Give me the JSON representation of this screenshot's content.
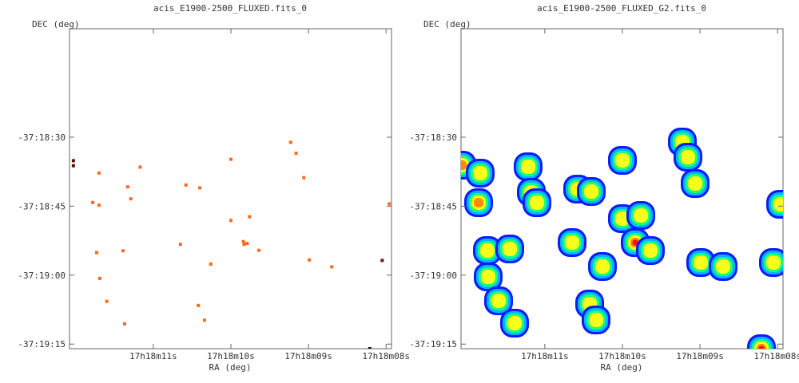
{
  "chart_data": [
    {
      "type": "scatter",
      "title": "acis_E1900-2500_FLUXED.fits_0",
      "xlabel": "RA (deg)",
      "ylabel": "DEC (deg)",
      "x_ticks": [
        "17h18m11s",
        "17h18m10s",
        "17h18m09s",
        "17h18m08s"
      ],
      "y_ticks": [
        "-37:18:30",
        "-37:18:45",
        "-37:19:00",
        "-37:19:15"
      ],
      "x_range_sec": [
        12.08,
        7.93
      ],
      "y_range_arcsec": [
        -1086.4,
        -1156.0
      ],
      "grid": false,
      "points": [
        {
          "ra": 12.03,
          "dec": -1115.1,
          "color": "#5c0e00"
        },
        {
          "ra": 12.03,
          "dec": -1116.2,
          "color": "#5c0e00"
        },
        {
          "ra": 11.7,
          "dec": -1117.8,
          "color": "#ff6a1a"
        },
        {
          "ra": 11.7,
          "dec": -1124.8,
          "color": "#ff6a1a"
        },
        {
          "ra": 11.78,
          "dec": -1124.2,
          "color": "#ff6a1a"
        },
        {
          "ra": 11.33,
          "dec": -1120.8,
          "color": "#ff6a1a"
        },
        {
          "ra": 11.17,
          "dec": -1116.5,
          "color": "#ff6a1a"
        },
        {
          "ra": 11.29,
          "dec": -1123.4,
          "color": "#ff6a1a"
        },
        {
          "ra": 10.58,
          "dec": -1120.4,
          "color": "#ff6a1a"
        },
        {
          "ra": 10.4,
          "dec": -1121.0,
          "color": "#ff6a1a"
        },
        {
          "ra": 10.0,
          "dec": -1114.8,
          "color": "#ff6a1a"
        },
        {
          "ra": 9.23,
          "dec": -1111.1,
          "color": "#ff6a1a"
        },
        {
          "ra": 9.16,
          "dec": -1113.5,
          "color": "#ff6a1a"
        },
        {
          "ra": 9.06,
          "dec": -1118.8,
          "color": "#ff6a1a"
        },
        {
          "ra": 10.0,
          "dec": -1128.1,
          "color": "#ff6a1a"
        },
        {
          "ra": 9.76,
          "dec": -1127.3,
          "color": "#ff6a1a"
        },
        {
          "ra": 9.84,
          "dec": -1132.7,
          "color": "#ff6a1a"
        },
        {
          "ra": 9.83,
          "dec": -1133.3,
          "color": "#ff6a1a"
        },
        {
          "ra": 9.79,
          "dec": -1133.1,
          "color": "#ff6a1a"
        },
        {
          "ra": 9.64,
          "dec": -1134.6,
          "color": "#ff6a1a"
        },
        {
          "ra": 10.65,
          "dec": -1133.3,
          "color": "#ff6a1a"
        },
        {
          "ra": 11.39,
          "dec": -1134.7,
          "color": "#ff6a1a"
        },
        {
          "ra": 11.73,
          "dec": -1135.1,
          "color": "#ff6a1a"
        },
        {
          "ra": 10.26,
          "dec": -1137.6,
          "color": "#ff6a1a"
        },
        {
          "ra": 8.99,
          "dec": -1136.7,
          "color": "#ff6a1a"
        },
        {
          "ra": 8.7,
          "dec": -1138.2,
          "color": "#ff6a1a"
        },
        {
          "ra": 11.69,
          "dec": -1140.7,
          "color": "#ff6a1a"
        },
        {
          "ra": 11.6,
          "dec": -1145.7,
          "color": "#ff6a1a"
        },
        {
          "ra": 10.42,
          "dec": -1146.6,
          "color": "#ff6a1a"
        },
        {
          "ra": 11.37,
          "dec": -1150.6,
          "color": "#ff6a1a"
        },
        {
          "ra": 10.34,
          "dec": -1149.8,
          "color": "#ff6a1a"
        },
        {
          "ra": 8.05,
          "dec": -1136.8,
          "color": "#7a1206"
        },
        {
          "ra": 7.96,
          "dec": -1124.5,
          "color": "#ff6a1a"
        },
        {
          "ra": 8.21,
          "dec": -1156.0,
          "color": "#111111"
        }
      ]
    },
    {
      "type": "heatmap",
      "title": "acis_E1900-2500_FLUXED_G2.fits_0",
      "xlabel": "RA (deg)",
      "ylabel": "DEC (deg)",
      "x_ticks": [
        "17h18m11s",
        "17h18m10s",
        "17h18m09s",
        "17h18m08s"
      ],
      "y_ticks": [
        "-37:18:30",
        "-37:18:45",
        "-37:19:00",
        "-37:19:15"
      ],
      "x_range_sec": [
        12.08,
        7.93
      ],
      "y_range_arcsec": [
        -1086.4,
        -1156.0
      ],
      "grid": false,
      "colormap": [
        "#0b1cff",
        "#00b7ff",
        "#1aff7a",
        "#f7ff1a",
        "#ff8a00",
        "#ff1200"
      ],
      "blobs": [
        {
          "ra": 12.07,
          "dec": -1116.1,
          "peak": 0.55
        },
        {
          "ra": 11.83,
          "dec": -1117.8,
          "peak": 0.2
        },
        {
          "ra": 11.22,
          "dec": -1116.5,
          "peak": 0.2
        },
        {
          "ra": 11.17,
          "dec": -1122.0,
          "peak": 0.2
        },
        {
          "ra": 11.1,
          "dec": -1124.3,
          "peak": 0.2
        },
        {
          "ra": 11.85,
          "dec": -1124.3,
          "peak": 0.5
        },
        {
          "ra": 10.58,
          "dec": -1121.2,
          "peak": 0.25
        },
        {
          "ra": 10.4,
          "dec": -1121.8,
          "peak": 0.25
        },
        {
          "ra": 10.0,
          "dec": -1115.0,
          "peak": 0.2
        },
        {
          "ra": 9.23,
          "dec": -1111.1,
          "peak": 0.2
        },
        {
          "ra": 9.16,
          "dec": -1114.3,
          "peak": 0.2
        },
        {
          "ra": 9.06,
          "dec": -1120.0,
          "peak": 0.2
        },
        {
          "ra": 10.0,
          "dec": -1127.7,
          "peak": 0.2
        },
        {
          "ra": 9.76,
          "dec": -1127.1,
          "peak": 0.2
        },
        {
          "ra": 9.84,
          "dec": -1132.9,
          "peak": 1.0
        },
        {
          "ra": 9.64,
          "dec": -1134.6,
          "peak": 0.3
        },
        {
          "ra": 10.65,
          "dec": -1132.9,
          "peak": 0.2
        },
        {
          "ra": 11.74,
          "dec": -1134.6,
          "peak": 0.2
        },
        {
          "ra": 11.45,
          "dec": -1134.3,
          "peak": 0.2
        },
        {
          "ra": 10.26,
          "dec": -1138.1,
          "peak": 0.2
        },
        {
          "ra": 8.99,
          "dec": -1137.3,
          "peak": 0.2
        },
        {
          "ra": 8.7,
          "dec": -1138.2,
          "peak": 0.2
        },
        {
          "ra": 8.05,
          "dec": -1137.3,
          "peak": 0.3
        },
        {
          "ra": 7.96,
          "dec": -1124.5,
          "peak": 0.2
        },
        {
          "ra": 11.73,
          "dec": -1140.4,
          "peak": 0.2
        },
        {
          "ra": 11.6,
          "dec": -1145.5,
          "peak": 0.2
        },
        {
          "ra": 11.39,
          "dec": -1150.4,
          "peak": 0.2
        },
        {
          "ra": 10.42,
          "dec": -1146.2,
          "peak": 0.2
        },
        {
          "ra": 10.34,
          "dec": -1149.7,
          "peak": 0.2
        },
        {
          "ra": 8.21,
          "dec": -1156.0,
          "peak": 0.9
        }
      ]
    }
  ]
}
